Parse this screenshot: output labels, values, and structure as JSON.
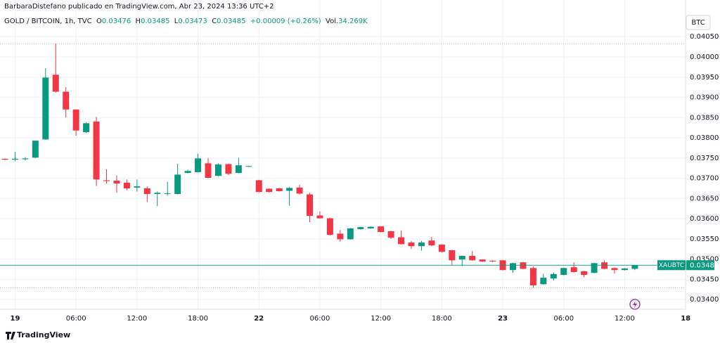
{
  "chart_data": {
    "type": "candlestick",
    "title": "GOLD / BITCOIN, 1h, TVC",
    "subtitle": "BarbaraDistefano publicado en TradingView.com, Abr 23, 2024 13:36 UTC+2",
    "brand": "TradingView",
    "legend": {
      "o_label": "O",
      "h_label": "H",
      "l_label": "L",
      "c_label": "C",
      "change": "+0.00009 (+0.26%)",
      "volume_label": "Vol.",
      "volume": "34.269K"
    },
    "currency": "BTC",
    "symbol": "XAUBTC",
    "up_color": "#089981",
    "down_color": "#f23645",
    "grid": true,
    "categories": [
      null,
      "19",
      null,
      null,
      null,
      null,
      null,
      "06:00",
      null,
      null,
      null,
      null,
      null,
      "12:00",
      null,
      null,
      null,
      null,
      null,
      "18:00",
      null,
      null,
      null,
      null,
      null,
      "22",
      null,
      null,
      null,
      null,
      null,
      "06:00",
      null,
      null,
      null,
      null,
      null,
      "12:00",
      null,
      null,
      null,
      null,
      null,
      "18:00",
      null,
      null,
      null,
      null,
      null,
      "23",
      null,
      null,
      null,
      null,
      null,
      "06:00",
      null,
      null,
      null,
      null,
      null,
      "12:00",
      null,
      null,
      null,
      null,
      null,
      "18"
    ],
    "open": [
      0.03748,
      0.03746,
      0.03747,
      0.03751,
      0.03796,
      0.03956,
      0.03914,
      0.0387,
      0.03814,
      0.0384,
      0.03695,
      0.03694,
      0.03689,
      0.03677,
      0.03675,
      0.03661,
      0.03662,
      0.03661,
      0.03713,
      0.03715,
      0.03737,
      0.03706,
      0.03735,
      0.03713,
      0.03729,
      0.03695,
      0.03674,
      0.03675,
      0.03669,
      0.03677,
      0.0366,
      0.03608,
      0.03601,
      0.03563,
      0.03549,
      0.03574,
      0.03576,
      0.03581,
      0.03569,
      0.03554,
      0.03541,
      0.03532,
      0.03546,
      0.03536,
      0.03522,
      0.03499,
      0.03508,
      0.03499,
      0.03496,
      0.03497,
      0.03473,
      0.03492,
      0.03478,
      0.03438,
      0.03452,
      0.03461,
      0.0348,
      0.0347,
      0.03466,
      0.03492,
      0.03478,
      0.03473,
      0.03476,
      null,
      null,
      null,
      null,
      null
    ],
    "high": [
      0.03749,
      0.03765,
      0.03752,
      0.03793,
      0.03972,
      0.04033,
      0.03925,
      0.0387,
      0.03838,
      0.03852,
      0.03722,
      0.03707,
      0.03697,
      0.03697,
      0.0368,
      0.03667,
      0.03691,
      0.03736,
      0.03721,
      0.03761,
      0.0375,
      0.03736,
      0.03736,
      0.03751,
      0.03731,
      0.03696,
      0.03675,
      0.03676,
      0.03678,
      0.03684,
      0.03664,
      0.03618,
      0.03602,
      0.03572,
      0.03577,
      0.0358,
      0.03581,
      0.03582,
      0.0357,
      0.03571,
      0.03545,
      0.03545,
      0.03555,
      0.03537,
      0.03523,
      0.03509,
      0.0352,
      0.035,
      0.03497,
      0.03498,
      0.03491,
      0.03493,
      0.03482,
      0.03464,
      0.03467,
      0.03479,
      0.03492,
      0.03471,
      0.03491,
      0.03497,
      0.03479,
      0.03478,
      0.03485,
      null,
      null,
      null,
      null,
      null
    ],
    "low": [
      0.03745,
      0.03742,
      0.03744,
      0.0375,
      0.03795,
      0.03912,
      0.0385,
      0.03805,
      0.03812,
      0.03681,
      0.03687,
      0.03664,
      0.0367,
      0.03667,
      0.03641,
      0.03631,
      0.03657,
      0.0366,
      0.03712,
      0.03714,
      0.037,
      0.03705,
      0.03708,
      0.03712,
      0.03728,
      0.03665,
      0.03665,
      0.03667,
      0.03632,
      0.0366,
      0.03591,
      0.036,
      0.03558,
      0.03543,
      0.03548,
      0.03573,
      0.03575,
      0.03566,
      0.0355,
      0.03536,
      0.03525,
      0.03521,
      0.03532,
      0.03516,
      0.03486,
      0.03483,
      0.03496,
      0.03493,
      0.03493,
      0.03472,
      0.03466,
      0.03475,
      0.03429,
      0.03437,
      0.03447,
      0.0346,
      0.03467,
      0.03455,
      0.03465,
      0.03475,
      0.03464,
      0.03472,
      0.03473,
      null,
      null,
      null,
      null,
      null
    ],
    "close": [
      0.03746,
      0.03748,
      0.03749,
      0.03793,
      0.03949,
      0.03914,
      0.0387,
      0.03818,
      0.03836,
      0.03697,
      0.03693,
      0.03687,
      0.03675,
      0.0368,
      0.03661,
      0.03664,
      0.03663,
      0.03709,
      0.03718,
      0.03749,
      0.03701,
      0.03734,
      0.03711,
      0.03732,
      0.0373,
      0.03666,
      0.03666,
      0.03668,
      0.03676,
      0.03662,
      0.03607,
      0.03601,
      0.0356,
      0.03549,
      0.03576,
      0.03579,
      0.0358,
      0.03567,
      0.03553,
      0.03537,
      0.03532,
      0.03541,
      0.03534,
      0.03518,
      0.03497,
      0.03508,
      0.03497,
      0.03494,
      0.03494,
      0.03473,
      0.0349,
      0.03476,
      0.03435,
      0.03454,
      0.03463,
      0.03478,
      0.03468,
      0.03461,
      0.0349,
      0.03476,
      0.03473,
      0.03477,
      0.03485,
      null,
      null,
      null,
      null,
      null
    ],
    "ylim": [
      0.03376,
      0.04106
    ],
    "yticks": [
      {
        "value": 0.034,
        "label": "0.03400"
      },
      {
        "value": 0.0345,
        "label": "0.03450"
      },
      {
        "value": 0.035,
        "label": "0.03500"
      },
      {
        "value": 0.0355,
        "label": "0.03550"
      },
      {
        "value": 0.036,
        "label": "0.03600"
      },
      {
        "value": 0.0365,
        "label": "0.03650"
      },
      {
        "value": 0.037,
        "label": "0.03700"
      },
      {
        "value": 0.0375,
        "label": "0.03750"
      },
      {
        "value": 0.038,
        "label": "0.03800"
      },
      {
        "value": 0.0385,
        "label": "0.03850"
      },
      {
        "value": 0.039,
        "label": "0.03900"
      },
      {
        "value": 0.0395,
        "label": "0.03950"
      },
      {
        "value": 0.04,
        "label": "0.04000"
      },
      {
        "value": 0.0405,
        "label": "0.04050"
      }
    ]
  }
}
